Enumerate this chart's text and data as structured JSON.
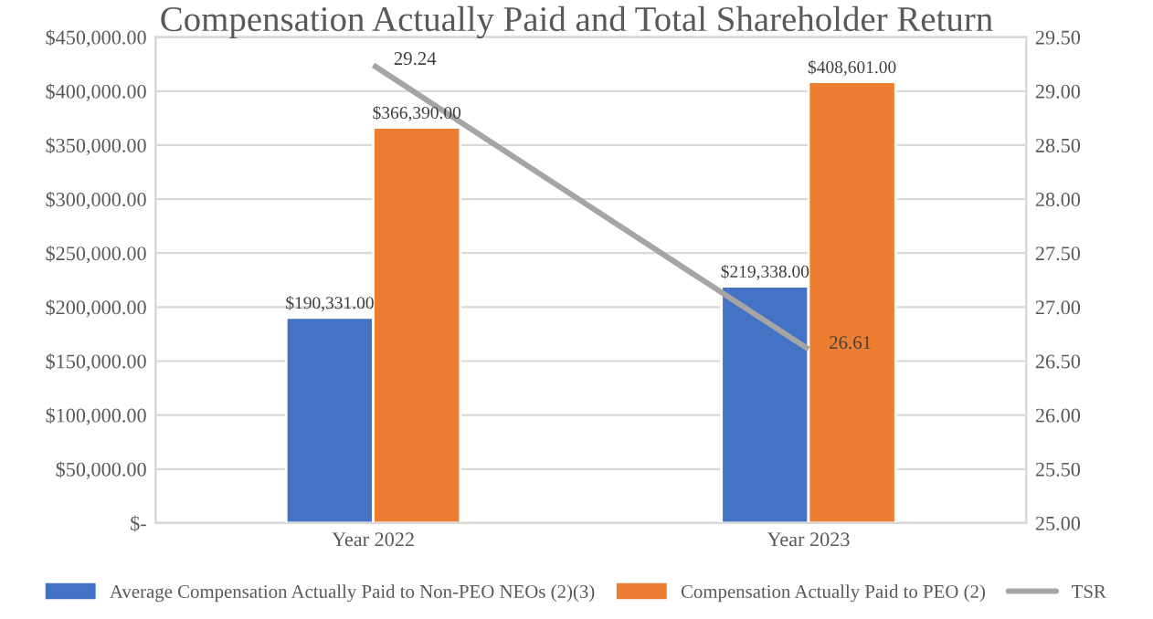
{
  "chart_data": {
    "type": "bar",
    "title": "Compensation Actually Paid and Total Shareholder Return",
    "categories": [
      "Year 2022",
      "Year 2023"
    ],
    "series": [
      {
        "name": "Average Compensation Actually Paid to Non-PEO NEOs (2)(3)",
        "color": "#4472c4",
        "values": [
          190331,
          219338
        ],
        "value_labels": [
          "$190,331.00",
          "$219,338.00"
        ]
      },
      {
        "name": "Compensation Actually Paid to PEO (2)",
        "color": "#ed7d31",
        "values": [
          366390,
          408601
        ],
        "value_labels": [
          "$366,390.00",
          "$408,601.00"
        ]
      },
      {
        "name": "TSR",
        "type": "line",
        "axis": "y2",
        "color": "#a5a5a5",
        "values": [
          29.24,
          26.61
        ],
        "value_labels": [
          "29.24",
          "26.61"
        ],
        "marker": "none"
      }
    ],
    "ylim": [
      0,
      450000
    ],
    "yticks": [
      {
        "value": 0,
        "label": "$-"
      },
      {
        "value": 50000,
        "label": "$50,000.00"
      },
      {
        "value": 100000,
        "label": "$100,000.00"
      },
      {
        "value": 150000,
        "label": "$150,000.00"
      },
      {
        "value": 200000,
        "label": "$200,000.00"
      },
      {
        "value": 250000,
        "label": "$250,000.00"
      },
      {
        "value": 300000,
        "label": "$300,000.00"
      },
      {
        "value": 350000,
        "label": "$350,000.00"
      },
      {
        "value": 400000,
        "label": "$400,000.00"
      },
      {
        "value": 450000,
        "label": "$450,000.00"
      }
    ],
    "y2lim": [
      25.0,
      29.5
    ],
    "y2ticks": [
      {
        "value": 25.0,
        "label": "25.00"
      },
      {
        "value": 25.5,
        "label": "25.50"
      },
      {
        "value": 26.0,
        "label": "26.00"
      },
      {
        "value": 26.5,
        "label": "26.50"
      },
      {
        "value": 27.0,
        "label": "27.00"
      },
      {
        "value": 27.5,
        "label": "27.50"
      },
      {
        "value": 28.0,
        "label": "28.00"
      },
      {
        "value": 28.5,
        "label": "28.50"
      },
      {
        "value": 29.0,
        "label": "29.00"
      },
      {
        "value": 29.5,
        "label": "29.50"
      }
    ],
    "grid": "y",
    "legend": "bottom"
  }
}
